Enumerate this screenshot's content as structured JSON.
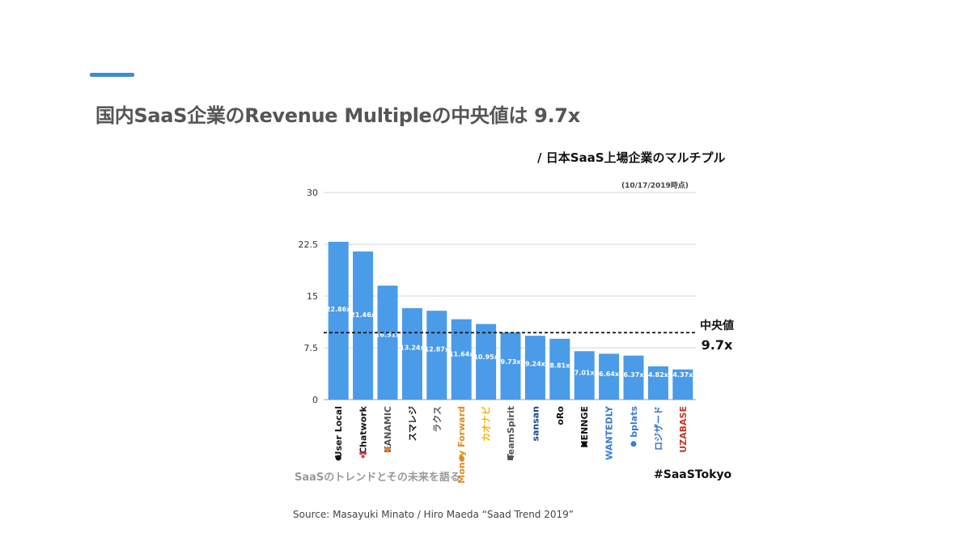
{
  "slide": {
    "title": "国内SaaS企業のRevenue Multipleの中央値は 9.7x",
    "subtitle": "/ 日本SaaS上場企業のマルチプル",
    "date_note": "(10/17/2019時点)",
    "footer_left": "SaaSのトレンドとその未来を語る",
    "footer_right": "#SaaSTokyo",
    "source": "Source: Masayuki Minato / Hiro Maeda “Saad Trend 2019”"
  },
  "chart_data": {
    "type": "bar",
    "categories": [
      "User Local",
      "Chatwork",
      "KANAMIC",
      "スマレジ",
      "ラクス",
      "Money Forward",
      "カオナビ",
      "TeamSpirit",
      "sansan",
      "oRo",
      "HENNGE",
      "WANTEDLY",
      "bplats",
      "ロジザード",
      "UZABASE"
    ],
    "values": [
      22.86,
      21.46,
      16.51,
      13.24,
      12.87,
      11.64,
      10.95,
      9.73,
      9.24,
      8.81,
      7.01,
      6.64,
      6.37,
      4.82,
      4.37
    ],
    "value_labels": [
      "22.86x",
      "21.46x",
      "16.51x",
      "13.24x",
      "12.87x",
      "11.64x",
      "10.95x",
      "9.73x",
      "9.24x",
      "8.81x",
      "7.01x",
      "6.64x",
      "6.37x",
      "4.82x",
      "4.37x"
    ],
    "yticks": [
      "0",
      "7.5",
      "15",
      "22.5",
      "30"
    ],
    "ylim": [
      0,
      30
    ],
    "grid": true,
    "bar_color": "#4a9be8",
    "median": {
      "value": 9.7,
      "label": "中央値",
      "value_label": "9.7x"
    },
    "logo_colors": [
      "#111111",
      "#111111",
      "#555555",
      "#111111",
      "#555555",
      "#e08a1e",
      "#f0b400",
      "#555555",
      "#1a4a8c",
      "#111111",
      "#111111",
      "#3a7bd5",
      "#3a7bd5",
      "#2a6fc9",
      "#c0392b"
    ],
    "logo_icons": [
      "circle-icon",
      "dots-icon",
      "diamond-icon",
      "",
      "",
      "flame-icon",
      "",
      "square-icon",
      "",
      "",
      "square-icon",
      "",
      "circle-icon",
      "",
      ""
    ]
  }
}
